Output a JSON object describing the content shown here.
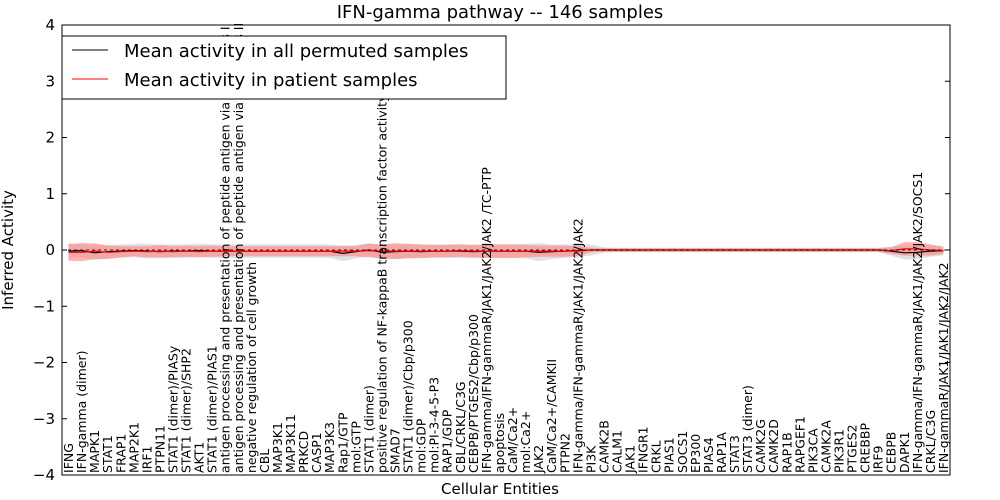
{
  "chart_data": {
    "type": "line",
    "title": "IFN-gamma pathway -- 146 samples",
    "xlabel": "Cellular Entities",
    "ylabel": "Inferred Activity",
    "ylim": [
      -4,
      4
    ],
    "yticks": [
      -4,
      -3,
      -2,
      -1,
      0,
      1,
      2,
      3,
      4
    ],
    "ytick_labels": [
      "−4",
      "−3",
      "−2",
      "−1",
      "0",
      "1",
      "2",
      "3",
      "4"
    ],
    "legend_position": "top-left",
    "categories": [
      "IFNG",
      "IFN-gamma (dimer)",
      "MAPK1",
      "STAT1",
      "FRAP1",
      "MAP2K1",
      "IRF1",
      "PTPN11",
      "STAT1 (dimer)/PIASy",
      "STAT1 (dimer)/SHP2",
      "AKT1",
      "STAT1 (dimer)/PIAS1",
      "antigen processing and presentation of peptide antigen via MHC class I",
      "antigen processing and presentation of peptide antigen via MHC class II",
      "negative regulation of cell growth",
      "CBL",
      "MAP3K1",
      "MAP3K11",
      "PRKCD",
      "CASP1",
      "MAP3K3",
      "Rap1/GTP",
      "mol:GTP",
      "STAT1 (dimer)",
      "positive regulation of NF-kappaB transcription factor activity",
      "SMAD7",
      "STAT1 (dimer)/Cbp/p300",
      "mol:GDP",
      "mol:PI-3-4-5-P3",
      "RAP1/GDP",
      "CBL/CRKL/C3G",
      "CEBPB/PTGES2/Cbp/p300",
      "IFN-gamma/IFN-gammaR/JAK1/JAK2/JAK2  /TC-PTP",
      "apoptosis",
      "CaM/Ca2+",
      "mol:Ca2+",
      "JAK2",
      "CaM/Ca2+/CAMKII",
      "PTPN2",
      "IFN-gamma/IFN-gammaR/JAK1/JAK2/JAK2",
      "PI3K",
      "CAMK2B",
      "CALM1",
      "JAK1",
      "IFNGR1",
      "CRKL",
      "PIAS1",
      "SOCS1",
      "EP300",
      "PIAS4",
      "RAP1A",
      "STAT3",
      "STAT3 (dimer)",
      "CAMK2G",
      "CAMK2D",
      "RAP1B",
      "RAPGEF1",
      "PIK3CA",
      "CAMK2A",
      "PIK3R1",
      "PTGES2",
      "CREBBP",
      "IRF9",
      "CEBPB",
      "DAPK1",
      "IFN-gamma/IFN-gammaR/JAK1/JAK2/JAK2/SOCS1",
      "CRKL/C3G",
      "IFN-gammaR/JAK1/JAK1/JAK2/JAK2"
    ],
    "series": [
      {
        "name": "Mean activity in all permuted samples",
        "color": "#000000",
        "band_color": "#c8c8c8",
        "values": [
          -0.02,
          -0.01,
          -0.05,
          -0.03,
          -0.02,
          -0.01,
          -0.02,
          -0.03,
          -0.02,
          -0.02,
          -0.01,
          -0.02,
          -0.02,
          -0.02,
          -0.02,
          -0.02,
          -0.02,
          -0.02,
          -0.02,
          -0.02,
          -0.02,
          -0.06,
          -0.03,
          0.0,
          -0.04,
          -0.03,
          -0.02,
          -0.03,
          -0.02,
          -0.02,
          -0.02,
          -0.03,
          -0.02,
          -0.02,
          -0.02,
          -0.02,
          -0.04,
          -0.03,
          -0.02,
          -0.01,
          0.0,
          0.0,
          0.0,
          0.0,
          0.0,
          0.0,
          0.0,
          0.0,
          0.0,
          0.0,
          0.0,
          0.0,
          0.0,
          0.0,
          0.0,
          0.0,
          0.0,
          0.0,
          0.0,
          0.0,
          0.0,
          0.0,
          0.0,
          -0.02,
          -0.05,
          -0.04,
          -0.02,
          -0.01
        ],
        "band_half_width": [
          0.12,
          0.12,
          0.13,
          0.12,
          0.12,
          0.12,
          0.13,
          0.12,
          0.12,
          0.12,
          0.12,
          0.12,
          0.12,
          0.12,
          0.12,
          0.12,
          0.12,
          0.12,
          0.12,
          0.12,
          0.12,
          0.14,
          0.12,
          0.12,
          0.13,
          0.13,
          0.12,
          0.12,
          0.12,
          0.12,
          0.12,
          0.12,
          0.12,
          0.12,
          0.12,
          0.13,
          0.16,
          0.13,
          0.12,
          0.11,
          0.1,
          0.05,
          0.04,
          0.04,
          0.04,
          0.04,
          0.04,
          0.04,
          0.04,
          0.04,
          0.04,
          0.04,
          0.04,
          0.04,
          0.04,
          0.04,
          0.04,
          0.04,
          0.04,
          0.04,
          0.04,
          0.04,
          0.04,
          0.08,
          0.12,
          0.12,
          0.1,
          0.09
        ]
      },
      {
        "name": "Mean activity in patient samples",
        "color": "#ff0000",
        "band_color": "#ff8080",
        "values": [
          -0.04,
          -0.04,
          -0.02,
          -0.04,
          -0.03,
          -0.02,
          -0.03,
          -0.02,
          -0.03,
          -0.02,
          -0.03,
          -0.02,
          -0.02,
          -0.02,
          -0.02,
          -0.02,
          -0.02,
          -0.02,
          -0.02,
          -0.02,
          -0.02,
          -0.02,
          -0.02,
          -0.01,
          -0.02,
          -0.02,
          -0.02,
          -0.02,
          -0.02,
          -0.02,
          -0.01,
          -0.02,
          -0.02,
          -0.02,
          -0.02,
          -0.02,
          -0.02,
          -0.02,
          -0.02,
          -0.02,
          0.0,
          0.0,
          0.0,
          0.0,
          0.0,
          0.0,
          0.0,
          0.0,
          0.0,
          0.0,
          0.0,
          0.0,
          0.0,
          0.0,
          0.0,
          0.0,
          0.0,
          0.0,
          0.0,
          0.0,
          0.0,
          0.0,
          0.0,
          -0.01,
          0.02,
          0.02,
          0.0,
          -0.01
        ],
        "band_half_width": [
          0.15,
          0.16,
          0.14,
          0.12,
          0.1,
          0.09,
          0.1,
          0.11,
          0.1,
          0.1,
          0.1,
          0.1,
          0.09,
          0.09,
          0.09,
          0.09,
          0.09,
          0.09,
          0.09,
          0.09,
          0.09,
          0.09,
          0.09,
          0.12,
          0.12,
          0.14,
          0.13,
          0.12,
          0.11,
          0.11,
          0.11,
          0.11,
          0.12,
          0.12,
          0.12,
          0.11,
          0.1,
          0.1,
          0.1,
          0.09,
          0.04,
          0.03,
          0.03,
          0.03,
          0.03,
          0.03,
          0.03,
          0.03,
          0.03,
          0.03,
          0.03,
          0.03,
          0.03,
          0.03,
          0.03,
          0.03,
          0.03,
          0.03,
          0.03,
          0.03,
          0.03,
          0.03,
          0.03,
          0.06,
          0.12,
          0.12,
          0.1,
          0.06
        ]
      }
    ]
  }
}
